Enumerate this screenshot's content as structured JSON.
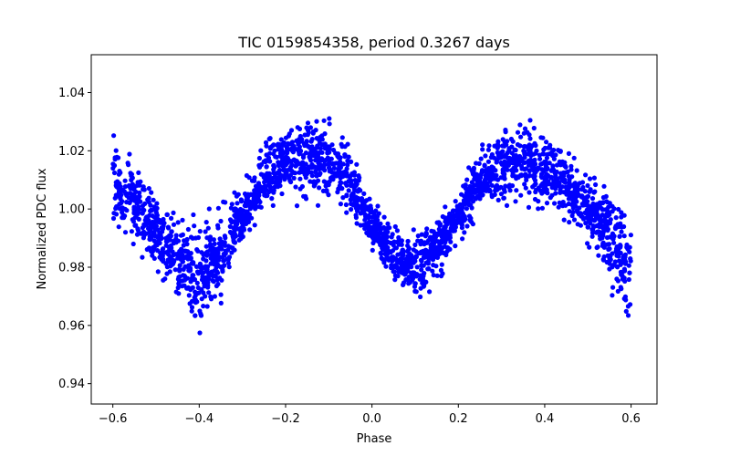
{
  "chart_data": {
    "type": "scatter",
    "title": "TIC 0159854358, period 0.3267 days",
    "xlabel": "Phase",
    "ylabel": "Normalized PDC flux",
    "xlim": [
      -0.65,
      0.66
    ],
    "ylim": [
      0.933,
      1.053
    ],
    "xticks": [
      -0.6,
      -0.4,
      -0.2,
      0.0,
      0.2,
      0.4,
      0.6
    ],
    "xtick_labels": [
      "−0.6",
      "−0.4",
      "−0.2",
      "0.0",
      "0.2",
      "0.4",
      "0.6"
    ],
    "yticks": [
      0.94,
      0.96,
      0.98,
      1.0,
      1.02,
      1.04
    ],
    "ytick_labels": [
      "0.94",
      "0.96",
      "0.98",
      "1.00",
      "1.02",
      "1.04"
    ],
    "grid": false,
    "marker_color": "#0000ff",
    "series": [
      {
        "x_range": [
          -0.6,
          0.6
        ],
        "n_points": 2600,
        "center_curve": {
          "x": [
            -0.6,
            -0.55,
            -0.5,
            -0.45,
            -0.4,
            -0.35,
            -0.3,
            -0.25,
            -0.2,
            -0.15,
            -0.1,
            -0.05,
            0.0,
            0.05,
            0.1,
            0.15,
            0.2,
            0.25,
            0.3,
            0.35,
            0.4,
            0.45,
            0.5,
            0.55,
            0.6
          ],
          "y": [
            1.008,
            1.003,
            0.992,
            0.983,
            0.977,
            0.984,
            0.998,
            1.01,
            1.016,
            1.018,
            1.016,
            1.009,
            0.996,
            0.984,
            0.981,
            0.986,
            0.998,
            1.009,
            1.015,
            1.016,
            1.013,
            1.008,
            1.0,
            0.99,
            0.978
          ]
        },
        "spread": {
          "x": [
            -0.6,
            -0.55,
            -0.5,
            -0.45,
            -0.4,
            -0.35,
            -0.3,
            -0.25,
            -0.2,
            -0.15,
            -0.1,
            -0.05,
            0.0,
            0.05,
            0.1,
            0.15,
            0.2,
            0.25,
            0.3,
            0.35,
            0.4,
            0.45,
            0.5,
            0.55,
            0.6
          ],
          "y": [
            0.016,
            0.015,
            0.013,
            0.015,
            0.02,
            0.016,
            0.011,
            0.011,
            0.013,
            0.016,
            0.014,
            0.011,
            0.009,
            0.009,
            0.013,
            0.011,
            0.009,
            0.011,
            0.014,
            0.015,
            0.013,
            0.011,
            0.012,
            0.016,
            0.021
          ]
        }
      }
    ]
  }
}
